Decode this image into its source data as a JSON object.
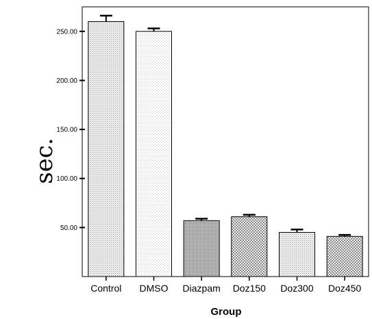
{
  "chart_data": {
    "type": "bar",
    "categories": [
      "Control",
      "DMSO",
      "Diazpam",
      "Doz150",
      "Doz300",
      "Doz450"
    ],
    "values": [
      260,
      250,
      57,
      61,
      45,
      41
    ],
    "errors": [
      6,
      3,
      2,
      2,
      3,
      1.5
    ],
    "xlabel": "Group",
    "ylabel": "sec.",
    "ylim": [
      0,
      275
    ],
    "yticks": [
      50,
      100,
      150,
      200,
      250
    ],
    "ytick_labels": [
      "50.00",
      "100.00",
      "150.00",
      "200.00",
      "250.00"
    ],
    "grid": false,
    "bar_patterns": [
      "dots-light",
      "dots-sparse",
      "dots-dense",
      "checker",
      "dots-light",
      "checker"
    ]
  }
}
